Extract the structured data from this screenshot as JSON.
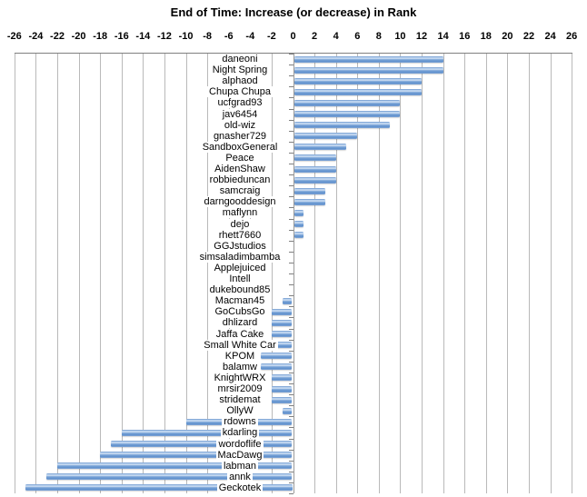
{
  "title": "End of Time: Increase (or decrease) in Rank",
  "chart_data": {
    "type": "bar",
    "orientation": "horizontal",
    "title": "End of Time: Increase (or decrease) in Rank",
    "xlabel": "",
    "ylabel": "",
    "xlim": [
      -26,
      26
    ],
    "x_tick_step": 2,
    "x_ticks": [
      -26,
      -24,
      -22,
      -20,
      -18,
      -16,
      -14,
      -12,
      -10,
      -8,
      -6,
      -4,
      -2,
      0,
      2,
      4,
      6,
      8,
      10,
      12,
      14,
      16,
      18,
      20,
      22,
      24,
      26
    ],
    "grid": true,
    "legend": "none",
    "bar_color": "#7da7dc",
    "gridline_color": "#b9b9b9",
    "axis_color": "#7f7f7f",
    "background": "#ffffff",
    "categories": [
      "daneoni",
      "Night Spring",
      "alphaod",
      "Chupa Chupa",
      "ucfgrad93",
      "jav6454",
      "old-wiz",
      "gnasher729",
      "SandboxGeneral",
      "Peace",
      "AidenShaw",
      "robbieduncan",
      "samcraig",
      "darngooddesign",
      "maflynn",
      "dejo",
      "rhett7660",
      "GGJstudios",
      "simsaladimbamba",
      "Applejuiced",
      "Intell",
      "dukebound85",
      "Macman45",
      "GoCubsGo",
      "dhlizard",
      "Jaffa Cake",
      "Small White Car",
      "KPOM",
      "balamw",
      "KnightWRX",
      "mrsir2009",
      "stridemat",
      "OllyW",
      "rdowns",
      "kdarling",
      "wordoflife",
      "MacDawg",
      "labman",
      "annk",
      "Geckotek"
    ],
    "values": [
      14,
      14,
      12,
      12,
      10,
      10,
      9,
      6,
      5,
      4,
      4,
      4,
      3,
      3,
      1,
      1,
      1,
      0,
      0,
      0,
      0,
      0,
      -1,
      -2,
      -2,
      -2,
      -2,
      -3,
      -3,
      -2,
      -2,
      -2,
      -1,
      -10,
      -16,
      -17,
      -18,
      -22,
      -23,
      -25
    ]
  }
}
